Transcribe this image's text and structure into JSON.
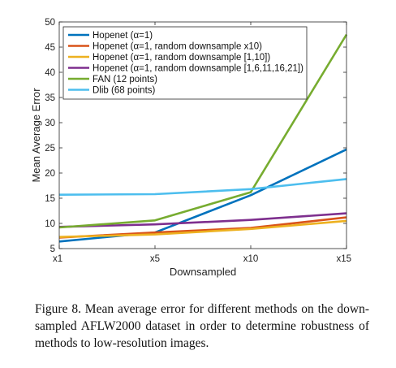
{
  "chart_data": {
    "type": "line",
    "x": [
      "x1",
      "x5",
      "x10",
      "x15"
    ],
    "xlabel": "Downsampled",
    "ylabel": "Mean Average Error",
    "ylim": [
      5,
      50
    ],
    "yticks": [
      5,
      10,
      15,
      20,
      25,
      30,
      35,
      40,
      45,
      50
    ],
    "grid": false,
    "legend_position": "top-left",
    "series": [
      {
        "name": "Hopenet (α=1)",
        "color": "#0072BD",
        "values": [
          6.4,
          8.2,
          15.6,
          24.7
        ]
      },
      {
        "name": "Hopenet (α=1, random downsample x10)",
        "color": "#D95319",
        "values": [
          7.2,
          8.2,
          9.1,
          11.2
        ]
      },
      {
        "name": "Hopenet (α=1, random downsample [1,10])",
        "color": "#EDB120",
        "values": [
          7.3,
          7.8,
          8.9,
          10.5
        ]
      },
      {
        "name": "Hopenet (α=1, random downsample [1,6,11,16,21])",
        "color": "#7E2F8E",
        "values": [
          9.3,
          9.8,
          10.7,
          12.0
        ]
      },
      {
        "name": "FAN (12 points)",
        "color": "#77AC30",
        "values": [
          9.2,
          10.6,
          16.2,
          47.5
        ]
      },
      {
        "name": "Dlib (68 points)",
        "color": "#4DBEEE",
        "values": [
          15.7,
          15.8,
          16.8,
          18.8
        ]
      }
    ]
  },
  "caption": "Figure 8. Mean average error for different methods on the down-sampled AFLW2000 dataset in order to determine robustness of methods to low-resolution images."
}
